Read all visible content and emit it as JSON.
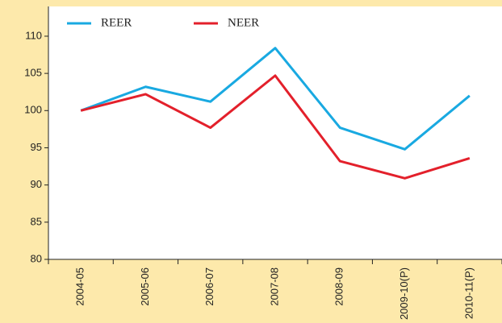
{
  "chart_data": {
    "type": "line",
    "categories": [
      "2004-05",
      "2005-06",
      "2006-07",
      "2007-08",
      "2008-09",
      "2009-10(P)",
      "2010-11(P)"
    ],
    "series": [
      {
        "name": "REER",
        "color": "#19a9e1",
        "values": [
          100,
          103.2,
          101.2,
          108.4,
          97.7,
          94.8,
          102.0
        ]
      },
      {
        "name": "NEER",
        "color": "#e3202b",
        "values": [
          100,
          102.2,
          97.7,
          104.7,
          93.2,
          90.9,
          93.6
        ]
      }
    ],
    "ylim": [
      80,
      114
    ],
    "yticks": [
      80,
      85,
      90,
      95,
      100,
      105,
      110
    ],
    "legend": "top-left"
  }
}
